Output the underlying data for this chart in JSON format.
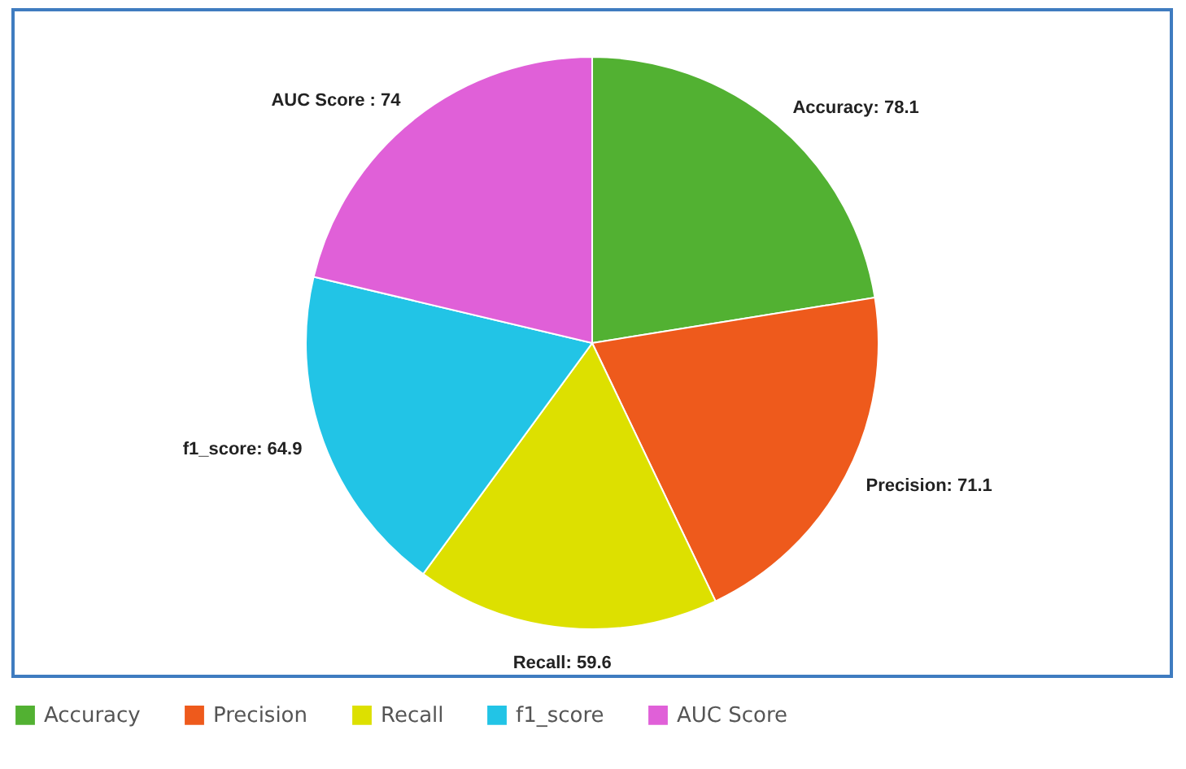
{
  "chart_data": {
    "type": "pie",
    "categories": [
      "Accuracy",
      "Precision",
      "Recall",
      "f1_score",
      "AUC Score"
    ],
    "values": [
      78.1,
      71.1,
      59.6,
      64.9,
      74
    ],
    "value_labels": [
      "Accuracy: 78.1",
      "Precision: 71.1",
      "Recall: 59.6",
      "f1_score: 64.9",
      "AUC Score : 74"
    ],
    "colors": [
      "#52b132",
      "#ee5a1c",
      "#dde000",
      "#22c4e6",
      "#e060d8"
    ],
    "legend": "bottom"
  }
}
